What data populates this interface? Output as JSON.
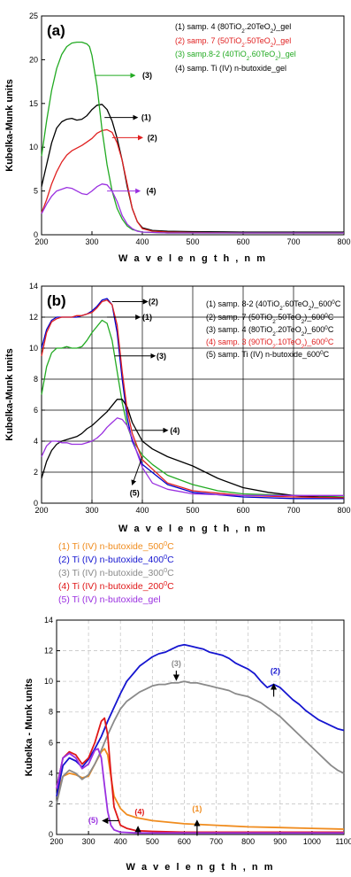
{
  "chart_data": [
    {
      "type": "line",
      "panel_label": "(a)",
      "xlabel": "W a v e l e n g t h , n m",
      "ylabel": "Kubelka-Munk units",
      "xlim": [
        200,
        800
      ],
      "ylim": [
        0,
        25
      ],
      "xticks": [
        200,
        300,
        400,
        500,
        600,
        700,
        800
      ],
      "yticks": [
        0,
        5,
        10,
        15,
        20,
        25
      ],
      "grid": false,
      "legend_position": "top-right",
      "series": [
        {
          "name": "(1) samp. 4 (80TiO2.20TeO2)_gel",
          "color": "#000000",
          "x": [
            200,
            210,
            220,
            230,
            240,
            250,
            260,
            270,
            280,
            290,
            300,
            310,
            320,
            330,
            340,
            350,
            360,
            370,
            380,
            390,
            400,
            420,
            450,
            500,
            600,
            700,
            800
          ],
          "y": [
            5.5,
            8,
            10.5,
            12.2,
            12.9,
            13.2,
            13.3,
            13.1,
            13.2,
            13.6,
            14.3,
            14.8,
            14.9,
            14.3,
            13,
            11,
            8.5,
            5.5,
            3,
            1.5,
            0.8,
            0.5,
            0.4,
            0.35,
            0.3,
            0.3,
            0.3
          ]
        },
        {
          "name": "(2) samp. 7 (50TiO2.50TeO2)_gel",
          "color": "#e02020",
          "x": [
            200,
            210,
            220,
            230,
            240,
            250,
            260,
            270,
            280,
            290,
            300,
            310,
            320,
            330,
            340,
            350,
            360,
            370,
            380,
            390,
            400,
            420,
            450,
            500,
            600,
            700,
            800
          ],
          "y": [
            2.5,
            4,
            5.8,
            7.2,
            8.3,
            9.1,
            9.6,
            9.9,
            10.2,
            10.6,
            11,
            11.6,
            11.9,
            12,
            11.7,
            10.5,
            8.5,
            5.8,
            3,
            1.5,
            0.7,
            0.4,
            0.3,
            0.25,
            0.2,
            0.2,
            0.2
          ]
        },
        {
          "name": "(3) samp.8-2 (40TiO2.60TeO2)_gel",
          "color": "#22aa22",
          "x": [
            200,
            210,
            220,
            230,
            240,
            250,
            260,
            270,
            280,
            290,
            295,
            300,
            310,
            320,
            330,
            340,
            350,
            360,
            370,
            380,
            400,
            450,
            500,
            600,
            700,
            800
          ],
          "y": [
            9,
            13,
            16.5,
            19,
            20.6,
            21.5,
            21.9,
            22,
            22,
            21.8,
            21.5,
            20.5,
            17,
            12,
            8,
            5,
            3,
            1.8,
            1,
            0.6,
            0.3,
            0.2,
            0.2,
            0.2,
            0.2,
            0.2
          ]
        },
        {
          "name": "(4) samp. Ti (IV) n-butoxide_gel",
          "color": "#9a30e0",
          "x": [
            200,
            210,
            220,
            230,
            240,
            250,
            260,
            270,
            280,
            290,
            300,
            310,
            320,
            330,
            340,
            350,
            360,
            370,
            380,
            390,
            400,
            450,
            500,
            600,
            700,
            800
          ],
          "y": [
            2.4,
            3.5,
            4.4,
            5,
            5.2,
            5.4,
            5.3,
            5,
            4.7,
            4.6,
            5,
            5.5,
            5.8,
            5.7,
            5,
            3.8,
            2.2,
            1.2,
            0.7,
            0.4,
            0.3,
            0.2,
            0.2,
            0.2,
            0.2,
            0.2
          ]
        }
      ],
      "annotations": [
        "(1)",
        "(2)",
        "(3)",
        "(4)"
      ]
    },
    {
      "type": "line",
      "panel_label": "(b)",
      "xlabel": "W a v e l e n g t h , n m",
      "ylabel": "Kubelka-Munk units",
      "xlim": [
        200,
        800
      ],
      "ylim": [
        0,
        14
      ],
      "xticks": [
        200,
        300,
        400,
        500,
        600,
        700,
        800
      ],
      "yticks": [
        0,
        2,
        4,
        6,
        8,
        10,
        12,
        14
      ],
      "grid": true,
      "legend_position": "top-right",
      "series": [
        {
          "name": "(1) samp. 8-2 (40TiO2.60TeO2)_600°C",
          "color": "#22aa22",
          "x": [
            200,
            210,
            220,
            230,
            240,
            250,
            260,
            270,
            280,
            290,
            300,
            310,
            320,
            330,
            340,
            350,
            360,
            370,
            380,
            400,
            420,
            450,
            500,
            550,
            600,
            700,
            800
          ],
          "y": [
            7,
            8.8,
            9.7,
            10,
            10,
            10.1,
            10,
            10,
            10.1,
            10.5,
            11,
            11.4,
            11.8,
            11.6,
            10.5,
            8.5,
            6.5,
            5,
            4.1,
            3.1,
            2.5,
            1.8,
            1.2,
            0.8,
            0.6,
            0.5,
            0.4
          ]
        },
        {
          "name": "(2) samp. 7 (50TiO2.50TeO2)_600°C",
          "color": "#0000cc",
          "x": [
            200,
            210,
            220,
            230,
            240,
            250,
            260,
            270,
            280,
            290,
            300,
            310,
            320,
            330,
            340,
            350,
            360,
            370,
            380,
            400,
            450,
            500,
            600,
            700,
            800
          ],
          "y": [
            10,
            11.2,
            11.8,
            12,
            12,
            12,
            12,
            12,
            12.1,
            12.2,
            12.4,
            12.7,
            13.1,
            13.2,
            12.8,
            11,
            8,
            5.5,
            4,
            2.5,
            1.2,
            0.7,
            0.4,
            0.3,
            0.3
          ]
        },
        {
          "name": "(3) samp. 4 (80TiO2.20TeO2)_600°C",
          "color": "#000000",
          "x": [
            200,
            210,
            220,
            230,
            240,
            250,
            260,
            270,
            280,
            290,
            300,
            310,
            320,
            330,
            340,
            350,
            360,
            370,
            380,
            400,
            420,
            450,
            500,
            550,
            600,
            650,
            700,
            750,
            800
          ],
          "y": [
            1.6,
            2.7,
            3.4,
            3.8,
            4,
            4.1,
            4.2,
            4.3,
            4.5,
            4.8,
            5,
            5.3,
            5.6,
            5.9,
            6.3,
            6.7,
            6.7,
            6.2,
            5.2,
            4,
            3.5,
            3,
            2.4,
            1.6,
            1,
            0.7,
            0.5,
            0.4,
            0.35
          ]
        },
        {
          "name": "(4) samp. 3 (90TiO2.10TeO2)_600°C",
          "color": "#e02020",
          "x": [
            200,
            210,
            220,
            230,
            240,
            250,
            260,
            270,
            280,
            290,
            300,
            310,
            320,
            330,
            340,
            350,
            360,
            370,
            380,
            400,
            450,
            500,
            600,
            700,
            800
          ],
          "y": [
            9.5,
            11,
            11.7,
            11.9,
            12,
            12,
            12,
            12.1,
            12.1,
            12.2,
            12.3,
            12.6,
            13,
            13.1,
            12.8,
            11.5,
            8.5,
            6,
            4.5,
            2.8,
            1.3,
            0.8,
            0.5,
            0.4,
            0.35
          ]
        },
        {
          "name": "(5) samp. Ti (IV) n-butoxide_600°C",
          "color": "#9a30e0",
          "x": [
            200,
            210,
            220,
            230,
            240,
            250,
            260,
            270,
            280,
            290,
            300,
            310,
            320,
            330,
            340,
            350,
            360,
            370,
            380,
            390,
            400,
            420,
            450,
            500,
            600,
            700,
            800
          ],
          "y": [
            3,
            3.7,
            4,
            4,
            3.9,
            3.9,
            3.8,
            3.8,
            3.8,
            3.9,
            4,
            4.2,
            4.5,
            4.9,
            5.2,
            5.5,
            5.4,
            5,
            4.2,
            3.2,
            2.3,
            1.3,
            0.9,
            0.6,
            0.5,
            0.5,
            0.5
          ]
        }
      ],
      "annotations": [
        "(1)",
        "(2)",
        "(3)",
        "(4)",
        "(5)"
      ]
    },
    {
      "type": "line",
      "xlabel": "W a v e l e n g t h , n m",
      "ylabel": "Kubelka - Munk units",
      "xlim": [
        200,
        1100
      ],
      "ylim": [
        0,
        14
      ],
      "xticks": [
        200,
        300,
        400,
        500,
        600,
        700,
        800,
        900,
        1000,
        1100
      ],
      "yticks": [
        0,
        2,
        4,
        6,
        8,
        10,
        12,
        14
      ],
      "grid": true,
      "legend_position": "top-left-outside",
      "series": [
        {
          "name": "(1) Ti (IV) n-butoxide_500°C",
          "color": "#f08c1e",
          "x": [
            200,
            220,
            240,
            260,
            280,
            300,
            320,
            340,
            350,
            360,
            370,
            380,
            400,
            420,
            450,
            500,
            600,
            700,
            800,
            900,
            1000,
            1100
          ],
          "y": [
            2.5,
            3.8,
            4,
            3.9,
            3.7,
            3.8,
            4.6,
            5.4,
            5.6,
            5.2,
            3.8,
            2.5,
            1.7,
            1.3,
            1.1,
            0.9,
            0.7,
            0.6,
            0.5,
            0.45,
            0.4,
            0.35
          ]
        },
        {
          "name": "(2) Ti (IV) n-butoxide_400°C",
          "color": "#1515d0",
          "x": [
            200,
            220,
            240,
            260,
            280,
            300,
            320,
            340,
            360,
            380,
            400,
            420,
            440,
            460,
            480,
            500,
            520,
            540,
            560,
            580,
            600,
            620,
            640,
            660,
            680,
            700,
            720,
            740,
            760,
            780,
            800,
            820,
            840,
            860,
            880,
            900,
            920,
            940,
            960,
            980,
            1000,
            1020,
            1040,
            1060,
            1080,
            1100
          ],
          "y": [
            2.5,
            4.5,
            5,
            4.8,
            4.4,
            4.9,
            5.6,
            6.4,
            7.4,
            8.3,
            9.2,
            10,
            10.5,
            11,
            11.3,
            11.6,
            11.8,
            11.9,
            12.1,
            12.3,
            12.4,
            12.3,
            12.2,
            12.1,
            11.9,
            11.8,
            11.7,
            11.5,
            11.2,
            11,
            10.8,
            10.5,
            10,
            9.6,
            9.8,
            9.6,
            9.2,
            8.8,
            8.5,
            8.1,
            7.8,
            7.5,
            7.3,
            7.1,
            6.9,
            6.8
          ]
        },
        {
          "name": "(3) Ti (IV) n-butoxide_300°C",
          "color": "#8a8a8a",
          "x": [
            200,
            220,
            240,
            260,
            280,
            300,
            320,
            340,
            360,
            380,
            400,
            420,
            440,
            460,
            480,
            500,
            520,
            540,
            560,
            580,
            600,
            620,
            640,
            660,
            680,
            700,
            720,
            740,
            760,
            780,
            800,
            820,
            840,
            860,
            880,
            900,
            920,
            940,
            960,
            980,
            1000,
            1020,
            1040,
            1060,
            1080,
            1100
          ],
          "y": [
            2,
            3.8,
            4.2,
            4,
            3.6,
            3.9,
            4.6,
            5.5,
            6.5,
            7.4,
            8.2,
            8.7,
            9,
            9.3,
            9.5,
            9.7,
            9.8,
            9.8,
            9.9,
            9.9,
            10,
            9.9,
            9.9,
            9.8,
            9.7,
            9.6,
            9.5,
            9.4,
            9.2,
            9.1,
            9,
            8.8,
            8.6,
            8.3,
            8,
            7.7,
            7.3,
            6.9,
            6.5,
            6.1,
            5.7,
            5.3,
            4.9,
            4.5,
            4.2,
            4
          ]
        },
        {
          "name": "(4) Ti (IV) n-butoxide_200°C",
          "color": "#e01818",
          "x": [
            200,
            220,
            240,
            260,
            280,
            300,
            320,
            340,
            350,
            360,
            370,
            380,
            400,
            420,
            450,
            500,
            600,
            700,
            800,
            900,
            1000,
            1100
          ],
          "y": [
            3,
            5,
            5.4,
            5.2,
            4.6,
            5,
            6,
            7.4,
            7.6,
            6.5,
            4,
            1.8,
            0.6,
            0.4,
            0.25,
            0.2,
            0.15,
            0.15,
            0.15,
            0.15,
            0.15,
            0.15
          ]
        },
        {
          "name": "(5) Ti (IV) n-butoxide_gel",
          "color": "#9a30e0",
          "x": [
            200,
            220,
            240,
            260,
            280,
            300,
            320,
            330,
            340,
            350,
            360,
            370,
            380,
            400,
            450,
            500,
            600,
            700,
            800,
            900,
            1000,
            1100
          ],
          "y": [
            3,
            5,
            5.3,
            5,
            4.3,
            4.6,
            5.5,
            5.6,
            5,
            3.2,
            1.5,
            0.6,
            0.3,
            0.15,
            0.1,
            0.1,
            0.1,
            0.1,
            0.1,
            0.1,
            0.1,
            0.1
          ]
        }
      ],
      "annotations": [
        "(1)",
        "(2)",
        "(3)",
        "(4)",
        "(5)"
      ]
    }
  ]
}
